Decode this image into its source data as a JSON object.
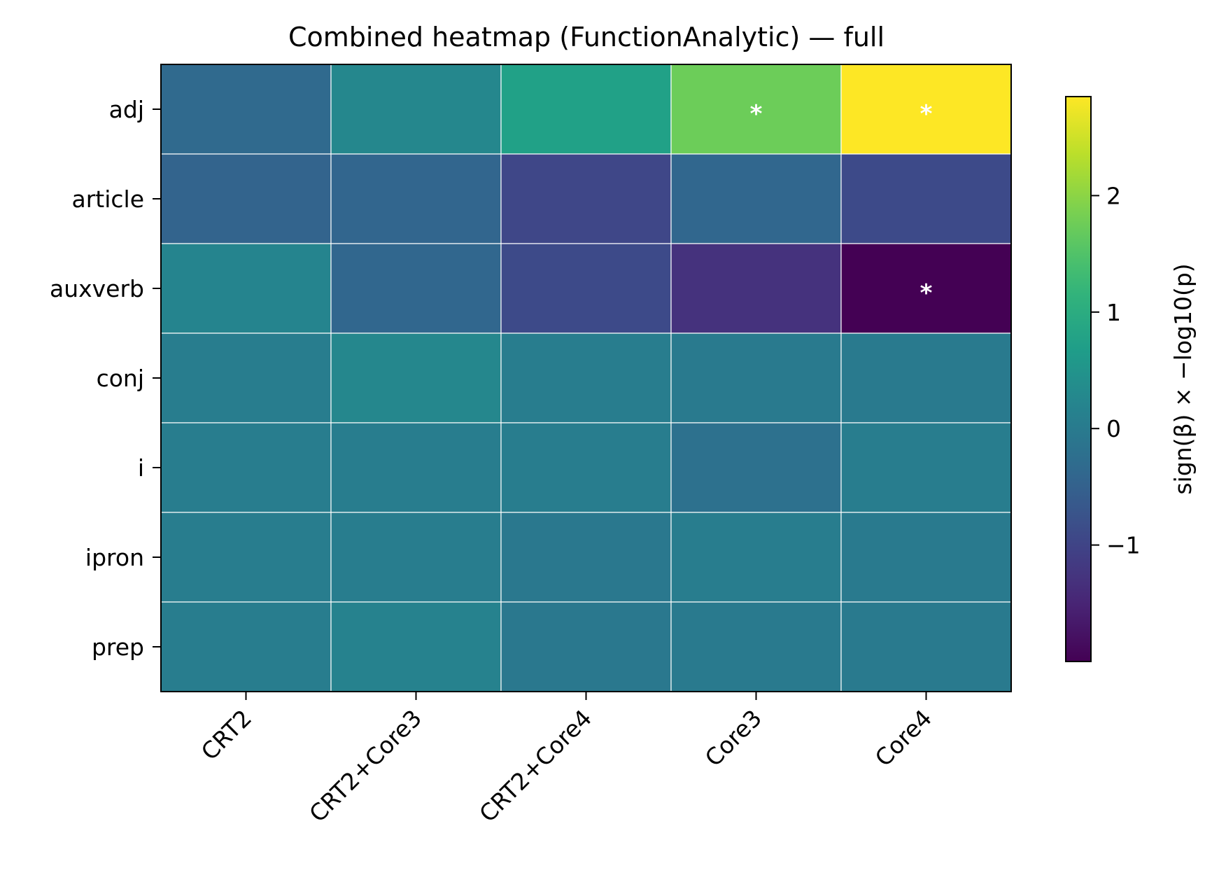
{
  "chart_data": {
    "type": "heatmap",
    "title": "Combined heatmap (FunctionAnalytic) — full",
    "x_categories": [
      "CRT2",
      "CRT2+Core3",
      "CRT2+Core4",
      "Core3",
      "Core4"
    ],
    "y_categories": [
      "adj",
      "article",
      "auxverb",
      "conj",
      "i",
      "ipron",
      "prep"
    ],
    "values": [
      [
        -0.35,
        0.25,
        0.75,
        1.75,
        2.85
      ],
      [
        -0.45,
        -0.42,
        -0.95,
        -0.4,
        -0.9
      ],
      [
        0.2,
        -0.4,
        -0.9,
        -1.3,
        -2.0
      ],
      [
        0.05,
        0.25,
        0.05,
        0.0,
        0.0
      ],
      [
        0.05,
        0.05,
        0.05,
        -0.2,
        0.05
      ],
      [
        0.05,
        0.05,
        -0.05,
        0.05,
        0.0
      ],
      [
        0.05,
        0.15,
        -0.05,
        0.0,
        0.0
      ]
    ],
    "significant": [
      [
        false,
        false,
        false,
        true,
        true
      ],
      [
        false,
        false,
        false,
        false,
        false
      ],
      [
        false,
        false,
        false,
        false,
        true
      ],
      [
        false,
        false,
        false,
        false,
        false
      ],
      [
        false,
        false,
        false,
        false,
        false
      ],
      [
        false,
        false,
        false,
        false,
        false
      ],
      [
        false,
        false,
        false,
        false,
        false
      ]
    ],
    "significance_marker": "*",
    "colormap": "viridis",
    "color_range": [
      -2.0,
      2.85
    ],
    "colorbar": {
      "label": "sign(β) × −log10(p)",
      "ticks": [
        -1,
        0,
        1,
        2
      ],
      "tick_labels": [
        "−1",
        "0",
        "1",
        "2"
      ]
    },
    "grid": true,
    "grid_color": "#ffffff"
  }
}
